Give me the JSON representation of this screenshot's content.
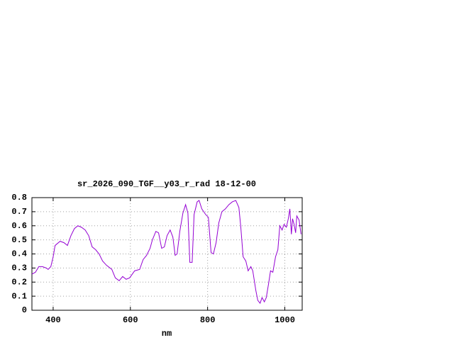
{
  "chart_data": {
    "type": "line",
    "title": "sr_2026_090_TGF__y03_r_rad 18-12-00",
    "x_label": "nm",
    "xlim": [
      345,
      1045
    ],
    "ylim": [
      0,
      0.8
    ],
    "xticks": [
      400,
      600,
      800,
      1000
    ],
    "yticks": [
      0,
      0.1,
      0.2,
      0.3,
      0.4,
      0.5,
      0.6,
      0.7,
      0.8
    ],
    "grid": true,
    "series": [
      {
        "color": "#9400d3",
        "x": [
          345,
          354,
          363,
          372,
          382,
          387,
          394,
          400,
          405,
          418,
          428,
          437,
          446,
          455,
          464,
          473,
          483,
          492,
          501,
          510,
          519,
          528,
          538,
          552,
          561,
          571,
          580,
          589,
          598,
          611,
          624,
          633,
          642,
          651,
          657,
          666,
          673,
          681,
          688,
          695,
          703,
          710,
          716,
          721,
          728,
          736,
          743,
          749,
          754,
          760,
          765,
          773,
          778,
          785,
          795,
          802,
          809,
          815,
          822,
          829,
          837,
          846,
          855,
          864,
          873,
          881,
          886,
          892,
          899,
          905,
          912,
          917,
          925,
          930,
          936,
          941,
          947,
          952,
          958,
          963,
          969,
          976,
          982,
          987,
          993,
          998,
          1004,
          1009,
          1013,
          1017,
          1020,
          1024,
          1028,
          1031,
          1037,
          1042
        ],
        "values": [
          0.256,
          0.27,
          0.31,
          0.31,
          0.3,
          0.29,
          0.31,
          0.38,
          0.46,
          0.49,
          0.48,
          0.46,
          0.53,
          0.58,
          0.6,
          0.59,
          0.57,
          0.53,
          0.45,
          0.43,
          0.4,
          0.35,
          0.32,
          0.29,
          0.23,
          0.21,
          0.24,
          0.22,
          0.23,
          0.28,
          0.29,
          0.36,
          0.39,
          0.44,
          0.5,
          0.56,
          0.55,
          0.44,
          0.45,
          0.53,
          0.57,
          0.52,
          0.39,
          0.4,
          0.56,
          0.69,
          0.75,
          0.69,
          0.34,
          0.34,
          0.68,
          0.77,
          0.78,
          0.72,
          0.68,
          0.66,
          0.41,
          0.4,
          0.48,
          0.62,
          0.7,
          0.72,
          0.75,
          0.77,
          0.78,
          0.73,
          0.59,
          0.38,
          0.35,
          0.28,
          0.31,
          0.28,
          0.14,
          0.07,
          0.05,
          0.09,
          0.06,
          0.09,
          0.19,
          0.28,
          0.27,
          0.38,
          0.43,
          0.6,
          0.57,
          0.61,
          0.59,
          0.65,
          0.72,
          0.54,
          0.65,
          0.61,
          0.55,
          0.67,
          0.64,
          0.54
        ]
      }
    ]
  }
}
